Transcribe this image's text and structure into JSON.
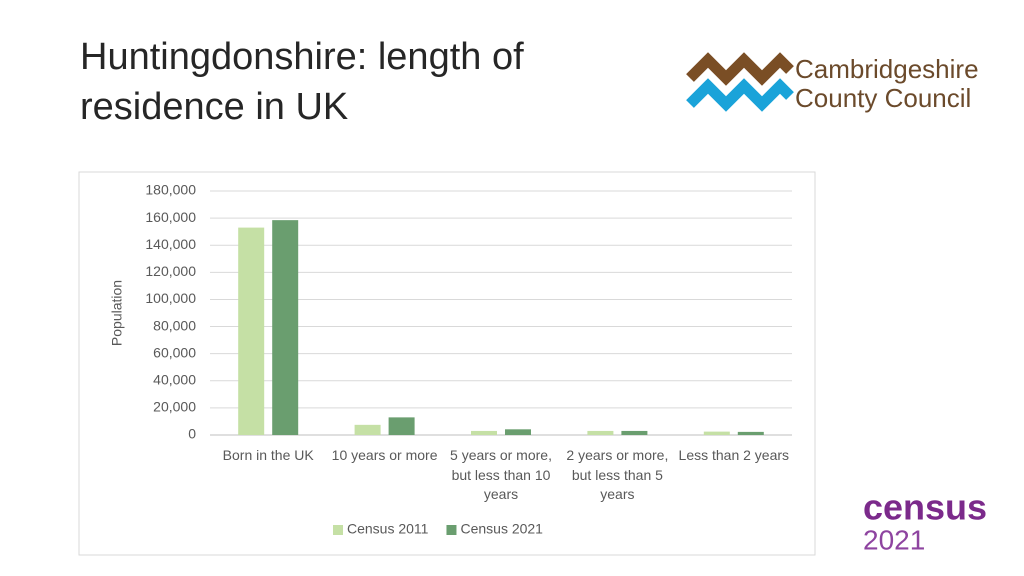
{
  "slide": {
    "title": "Huntingdonshire: length of residence in UK",
    "council_logo": [
      "Cambridgeshire",
      "County Council"
    ],
    "census_logo": [
      "census",
      "2021"
    ]
  },
  "chart_data": {
    "type": "bar",
    "y_label": "Population",
    "categories": [
      "Born in the UK",
      "10 years or more",
      "5 years or more, but less than 10 years",
      "2 years or more, but less than 5 years",
      "Less than 2 years"
    ],
    "series": [
      {
        "name": "Census 2011",
        "color": "#c5e0a5",
        "values": [
          153000,
          7500,
          3000,
          3000,
          2500
        ]
      },
      {
        "name": "Census 2021",
        "color": "#6a9e6f",
        "values": [
          158500,
          13000,
          4200,
          3000,
          2300
        ]
      }
    ],
    "ylim": [
      0,
      180000
    ],
    "yticks": [
      0,
      {
        "value": 20000,
        "label": "20,000"
      },
      {
        "value": 40000,
        "label": "40,000"
      },
      {
        "value": 60000,
        "label": "60,000"
      },
      {
        "value": 80000,
        "label": "80,000"
      },
      {
        "value": 100000,
        "label": "100,000"
      },
      {
        "value": 120000,
        "label": "120,000"
      },
      {
        "value": 140000,
        "label": "140,000"
      },
      {
        "value": 160000,
        "label": "160,000"
      },
      {
        "value": 180000,
        "label": "180,000"
      }
    ],
    "grid": true,
    "legend": "bottom"
  }
}
